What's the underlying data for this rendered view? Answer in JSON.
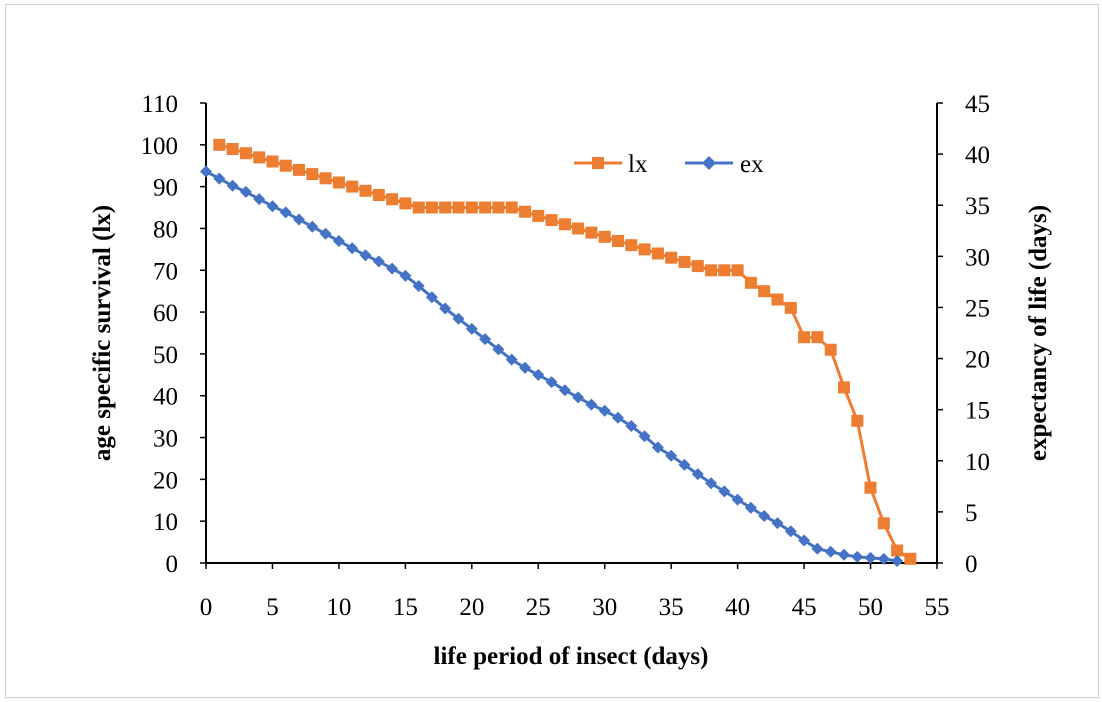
{
  "chart_data": {
    "type": "line",
    "xlabel": "life period of insect (days)",
    "ylabel_left": "age specific survival (lx)",
    "ylabel_right": "expectancy of life (days)",
    "xlim": [
      0,
      55
    ],
    "ylim_left": [
      0,
      110
    ],
    "ylim_right": [
      0,
      45
    ],
    "x_ticks": [
      "0",
      "5",
      "10",
      "15",
      "20",
      "25",
      "30",
      "35",
      "40",
      "45",
      "50",
      "55"
    ],
    "y_left_ticks": [
      "0",
      "10",
      "20",
      "30",
      "40",
      "50",
      "60",
      "70",
      "80",
      "90",
      "100",
      "110"
    ],
    "y_right_ticks": [
      "0",
      "5",
      "10",
      "15",
      "20",
      "25",
      "30",
      "35",
      "40",
      "45"
    ],
    "grid": false,
    "legend_position": "top-right",
    "series": [
      {
        "name": "lx",
        "axis": "left",
        "color": "#ed7d31",
        "marker": "square",
        "x": [
          1,
          2,
          3,
          4,
          5,
          6,
          7,
          8,
          9,
          10,
          11,
          12,
          13,
          14,
          15,
          16,
          17,
          18,
          19,
          20,
          21,
          22,
          23,
          24,
          25,
          26,
          27,
          28,
          29,
          30,
          31,
          32,
          33,
          34,
          35,
          36,
          37,
          38,
          39,
          40,
          41,
          42,
          43,
          44,
          45,
          46,
          47,
          48,
          49,
          50,
          51,
          52,
          53
        ],
        "values": [
          100,
          99,
          98,
          97,
          96,
          95,
          94,
          93,
          92,
          91,
          90,
          89,
          88,
          87,
          86,
          85,
          85,
          85,
          85,
          85,
          85,
          85,
          85,
          84,
          83,
          82,
          81,
          80,
          79,
          78,
          77,
          76,
          75,
          74,
          73,
          72,
          71,
          70,
          70,
          70,
          67,
          65,
          63,
          61,
          54,
          54,
          51,
          42,
          34,
          18,
          9.5,
          3,
          1
        ]
      },
      {
        "name": "ex",
        "axis": "right",
        "color": "#4472c4",
        "marker": "diamond",
        "x": [
          0,
          1,
          2,
          3,
          4,
          5,
          6,
          7,
          8,
          9,
          10,
          11,
          12,
          13,
          14,
          15,
          16,
          17,
          18,
          19,
          20,
          21,
          22,
          23,
          24,
          25,
          26,
          27,
          28,
          29,
          30,
          31,
          32,
          33,
          34,
          35,
          36,
          37,
          38,
          39,
          40,
          41,
          42,
          43,
          44,
          45,
          46,
          47,
          48,
          49,
          50,
          51,
          52
        ],
        "values": [
          38.3,
          37.6,
          36.9,
          36.3,
          35.6,
          34.9,
          34.3,
          33.6,
          32.9,
          32.2,
          31.5,
          30.8,
          30.1,
          29.5,
          28.8,
          28.1,
          27.1,
          26,
          24.9,
          23.9,
          22.9,
          21.9,
          20.9,
          19.9,
          19.1,
          18.4,
          17.7,
          16.9,
          16.2,
          15.5,
          14.9,
          14.2,
          13.4,
          12.4,
          11.3,
          10.5,
          9.6,
          8.7,
          7.8,
          7,
          6.2,
          5.4,
          4.6,
          3.9,
          3.1,
          2.2,
          1.4,
          1.1,
          0.8,
          0.6,
          0.5,
          0.4,
          0.2
        ]
      }
    ]
  }
}
